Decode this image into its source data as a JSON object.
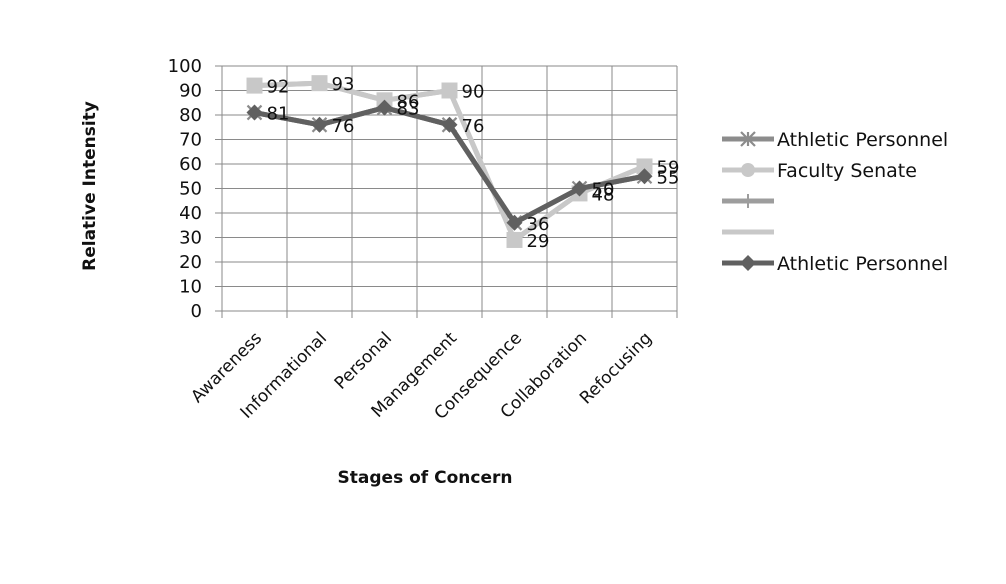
{
  "chart_data": {
    "type": "line",
    "title": "",
    "xlabel": "Stages of Concern",
    "ylabel": "Relative Intensity",
    "ylim": [
      0,
      100
    ],
    "ytick_step": 10,
    "grid": true,
    "legend_position": "right",
    "categories": [
      "Awareness",
      "Informational",
      "Personal",
      "Management",
      "Consequence",
      "Collaboration",
      "Refocusing"
    ],
    "series": [
      {
        "name": "Athletic Personnel",
        "marker": "asterisk",
        "color": "#8c8c8c",
        "values": [
          81,
          76,
          83,
          76,
          36,
          50,
          55
        ],
        "show_labels": false
      },
      {
        "name": "Faculty Senate",
        "marker": "circle",
        "color": "#c8c8c8",
        "values": [
          92,
          93,
          86,
          90,
          29,
          48,
          59
        ],
        "show_labels": false
      },
      {
        "name": "",
        "marker": "plus",
        "color": "#9d9d9d",
        "values": [
          81,
          76,
          83,
          76,
          36,
          50,
          55
        ],
        "show_labels": false
      },
      {
        "name": "",
        "marker": "none",
        "color": "#c8c8c8",
        "values": [
          92,
          93,
          86,
          90,
          29,
          48,
          59
        ],
        "show_labels": true,
        "label_marker": "square"
      },
      {
        "name": "Athletic Personnel",
        "marker": "diamond",
        "color": "#606060",
        "values": [
          81,
          76,
          83,
          76,
          36,
          50,
          55
        ],
        "show_labels": true
      }
    ]
  }
}
